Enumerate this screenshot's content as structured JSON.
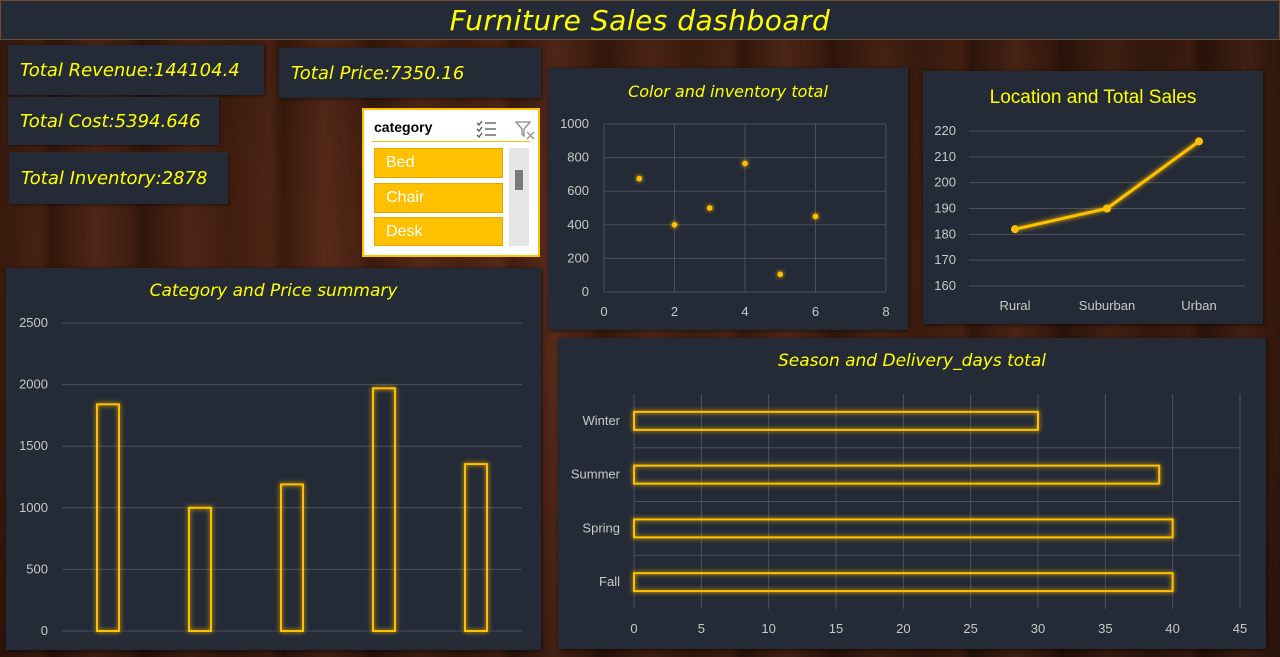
{
  "title": "Furniture Sales dashboard",
  "kpis": {
    "total_revenue": "Total Revenue:144104.4",
    "total_price": "Total Price:7350.16",
    "total_cost": "Total Cost:5394.646",
    "total_inventory": "Total Inventory:2878"
  },
  "slicer": {
    "title": "category",
    "items": [
      "Bed",
      "Chair",
      "Desk"
    ],
    "icons": [
      "multi-select-icon",
      "clear-filter-icon"
    ]
  },
  "colors": {
    "panel": "#252b36",
    "accent": "#ffc000",
    "title_text": "#ffff00"
  },
  "chart_data": [
    {
      "type": "scatter",
      "title": "Color and inventory total",
      "x": [
        1,
        2,
        3,
        4,
        5,
        6
      ],
      "y": [
        675,
        400,
        500,
        765,
        105,
        450
      ],
      "xlim": [
        0,
        8
      ],
      "ylim": [
        0,
        1000
      ],
      "x_ticks": [
        "0",
        "2",
        "4",
        "6",
        "8"
      ],
      "y_ticks": [
        "0",
        "200",
        "400",
        "600",
        "800",
        "1000"
      ],
      "grid": true
    },
    {
      "type": "line",
      "title": "Location and Total Sales",
      "categories": [
        "Rural",
        "Suburban",
        "Urban"
      ],
      "values": [
        182,
        190,
        216
      ],
      "ylim": [
        160,
        220
      ],
      "y_ticks": [
        "160",
        "170",
        "180",
        "190",
        "200",
        "210",
        "220"
      ],
      "grid": true
    },
    {
      "type": "bar",
      "title": "Category and Price summary",
      "values": [
        1840,
        1000,
        1190,
        1970,
        1355
      ],
      "ylim": [
        0,
        2500
      ],
      "y_ticks": [
        "0",
        "500",
        "1000",
        "1500",
        "2000",
        "2500"
      ],
      "grid": true
    },
    {
      "type": "bar",
      "orientation": "horizontal",
      "title": "Season and Delivery_days total",
      "categories": [
        "Fall",
        "Spring",
        "Summer",
        "Winter"
      ],
      "values": [
        40,
        40,
        39,
        30
      ],
      "xlim": [
        0,
        45
      ],
      "x_ticks": [
        "0",
        "5",
        "10",
        "15",
        "20",
        "25",
        "30",
        "35",
        "40",
        "45"
      ],
      "grid": true
    }
  ]
}
